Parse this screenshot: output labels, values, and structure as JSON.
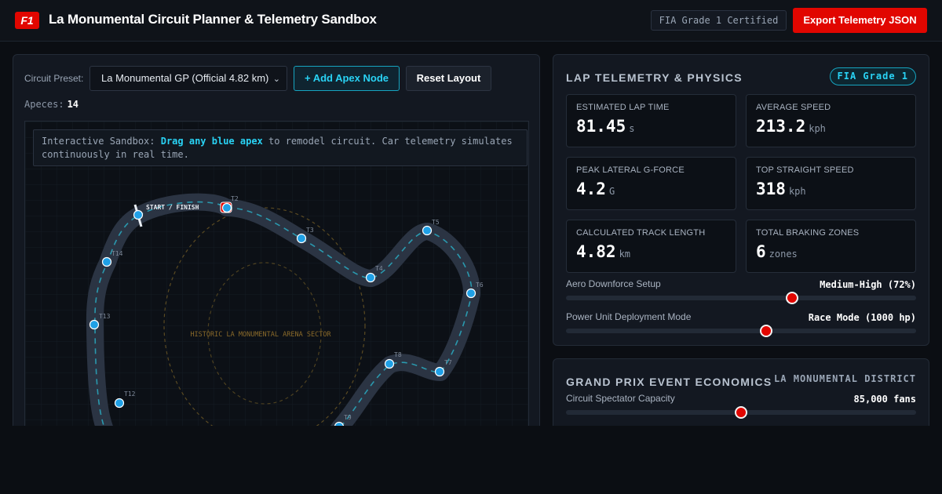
{
  "header": {
    "badge": "F1",
    "title": "La Monumental Circuit Planner & Telemetry Sandbox",
    "cert": "FIA Grade 1 Certified",
    "export_label": "Export Telemetry JSON"
  },
  "controls": {
    "preset_label": "Circuit Preset:",
    "preset_value": "La Monumental GP (Official 4.82 km)",
    "add_apex_label": "+ Add Apex Node",
    "reset_label": "Reset Layout",
    "apex_label": "Apeces:",
    "apex_count": "14"
  },
  "hint": {
    "prefix": "Interactive Sandbox:",
    "highlight": "Drag any blue apex",
    "suffix": "to remodel circuit. Car telemetry simulates continuously in real time."
  },
  "track": {
    "start_finish": "START / FINISH",
    "arena_label": "HISTORIC LA MONUMENTAL ARENA SECTOR",
    "turns": [
      "T2",
      "T3",
      "T4",
      "T5",
      "T6",
      "T7",
      "T8",
      "T9",
      "T12",
      "T13",
      "T14"
    ],
    "colors": {
      "track": "#2b3443",
      "centerline": "#2bb3c9",
      "apex": "#1fa0e6",
      "car": "#e10600"
    }
  },
  "telemetry": {
    "title": "LAP TELEMETRY & PHYSICS",
    "badge": "FIA Grade 1",
    "stats": [
      {
        "label": "ESTIMATED LAP TIME",
        "value": "81.45",
        "unit": "s"
      },
      {
        "label": "AVERAGE SPEED",
        "value": "213.2",
        "unit": "kph"
      },
      {
        "label": "PEAK LATERAL G-FORCE",
        "value": "4.2",
        "unit": "G"
      },
      {
        "label": "TOP STRAIGHT SPEED",
        "value": "318",
        "unit": "kph"
      },
      {
        "label": "CALCULATED TRACK LENGTH",
        "value": "4.82",
        "unit": "km"
      },
      {
        "label": "TOTAL BRAKING ZONES",
        "value": "6",
        "unit": "zones"
      }
    ],
    "sliders": [
      {
        "label": "Aero Downforce Setup",
        "value": "Medium-High (72%)",
        "level": 0.645
      },
      {
        "label": "Power Unit Deployment Mode",
        "value": "Race Mode (1000 hp)",
        "level": 0.571
      }
    ]
  },
  "economics": {
    "title": "GRAND PRIX EVENT ECONOMICS",
    "subtitle": "LA MONUMENTAL DISTRICT",
    "capacity_label": "Circuit Spectator Capacity",
    "capacity_value": "85,000 fans",
    "capacity_level": 0.5
  }
}
